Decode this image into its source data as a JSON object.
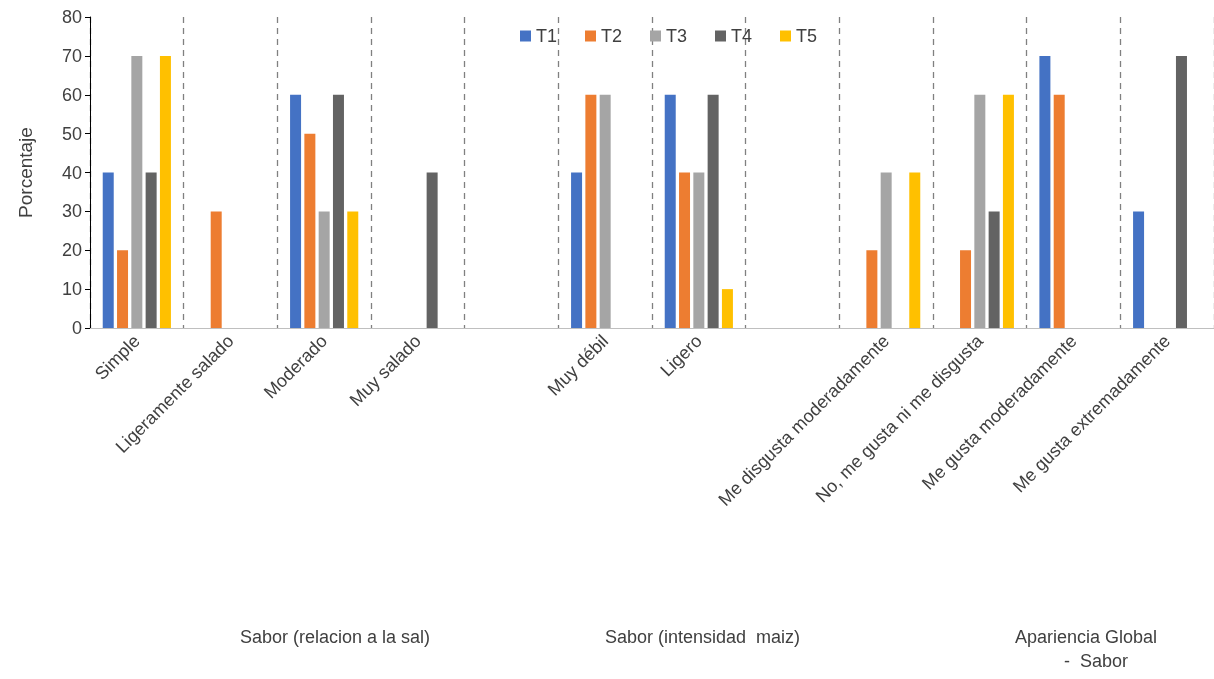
{
  "chart_data": {
    "type": "bar",
    "ylabel": "Porcentaje",
    "categories": [
      "Simple",
      "Ligeramente salado",
      "Moderado",
      "Muy salado",
      null,
      "Muy débil",
      "Ligero",
      null,
      "Me disgusta moderadamente",
      "No, me gusta ni me disgusta",
      "Me gusta moderadamente",
      "Me gusta extremadamente"
    ],
    "series": [
      {
        "name": "T1",
        "color": "#4472c4",
        "values": [
          40,
          null,
          60,
          null,
          null,
          40,
          60,
          null,
          null,
          null,
          70,
          30
        ]
      },
      {
        "name": "T2",
        "color": "#ed7d31",
        "values": [
          20,
          30,
          50,
          null,
          null,
          60,
          40,
          null,
          20,
          20,
          60,
          null
        ]
      },
      {
        "name": "T3",
        "color": "#a5a5a5",
        "values": [
          70,
          null,
          30,
          null,
          null,
          60,
          40,
          null,
          40,
          60,
          null,
          null
        ]
      },
      {
        "name": "T4",
        "color": "#636363",
        "values": [
          40,
          null,
          60,
          40,
          null,
          null,
          60,
          null,
          null,
          30,
          null,
          70
        ]
      },
      {
        "name": "T5",
        "color": "#ffc000",
        "values": [
          70,
          null,
          30,
          null,
          null,
          null,
          10,
          null,
          40,
          60,
          null,
          null
        ]
      }
    ],
    "ylim": [
      0,
      80
    ],
    "yticks": [
      0,
      10,
      20,
      30,
      40,
      50,
      60,
      70,
      80
    ],
    "grid": "x",
    "legend": "top",
    "annotations": [
      "Sabor (relacion a la sal)",
      "Sabor (intensidad  maiz)",
      "Apariencia Global\n    -  Sabor"
    ]
  }
}
